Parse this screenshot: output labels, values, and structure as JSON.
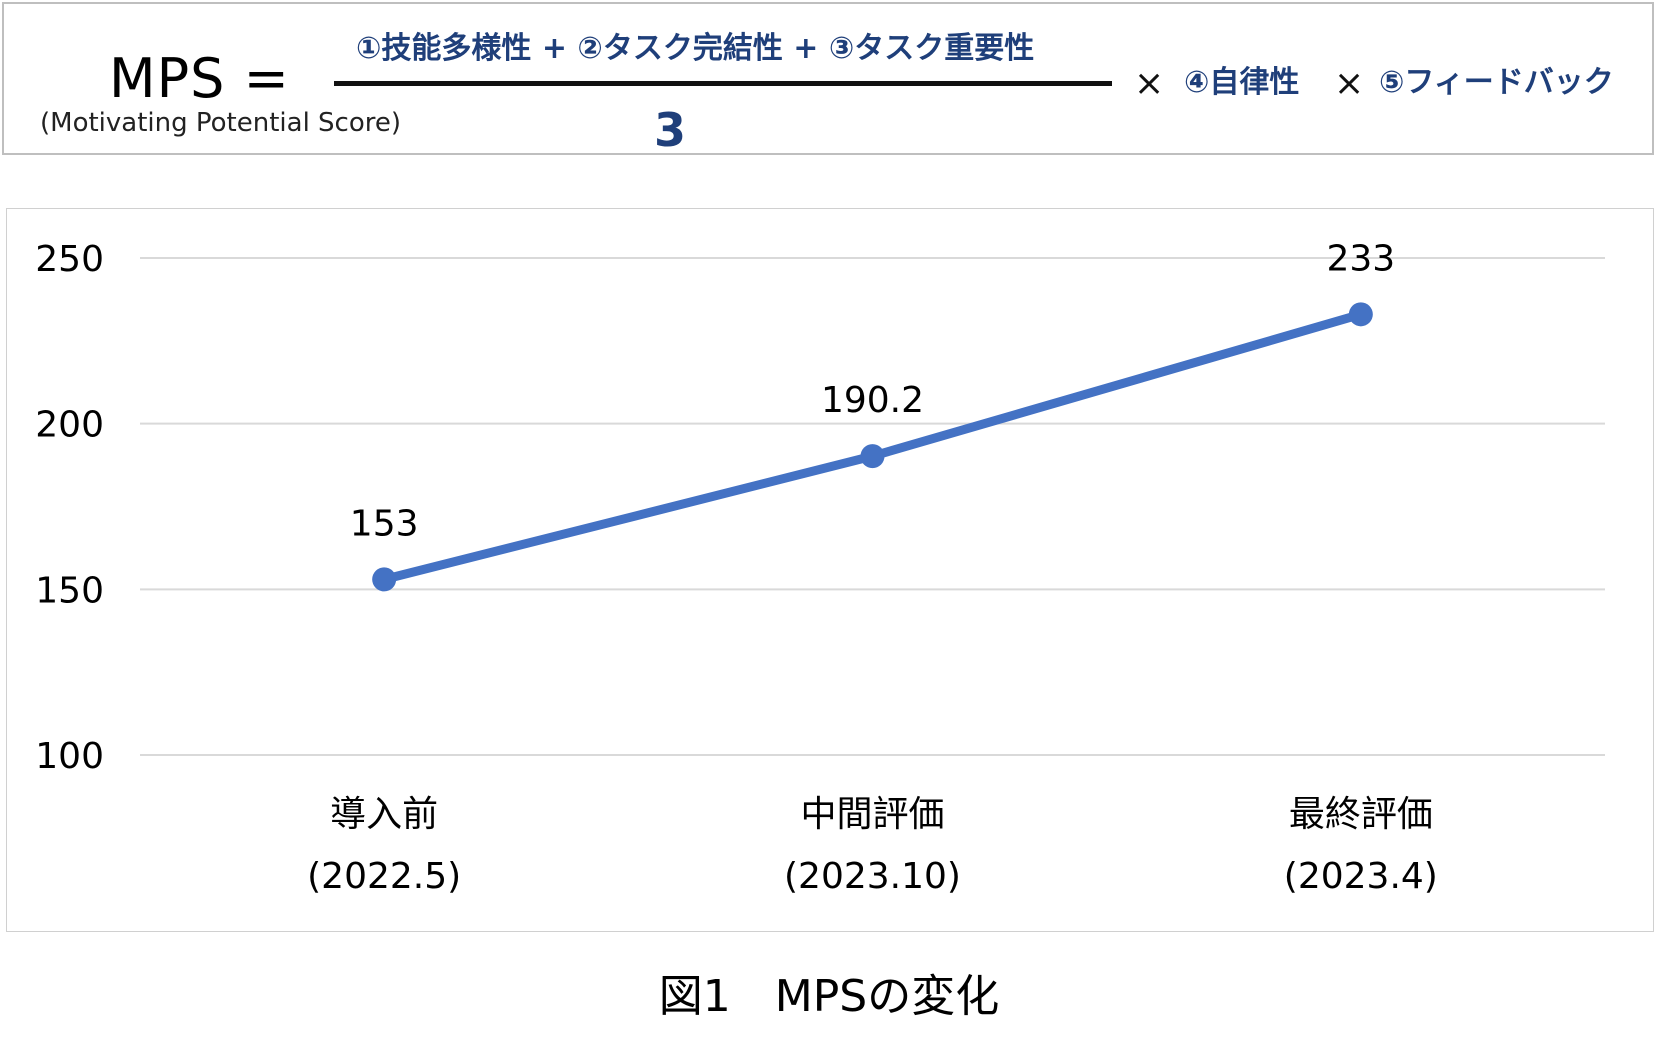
{
  "formula": {
    "lhs": "MPS =",
    "lhs_note": "(Motivating Potential Score)",
    "numerator": "①技能多様性 + ②タスク完結性 + ③タスク重要性",
    "denominator": "3",
    "times_symbol": "×",
    "factor_4": "④自律性",
    "factor_5": "⑤フィードバック",
    "accent_color": "#1f3f7a"
  },
  "chart_data": {
    "type": "line",
    "categories": [
      [
        "導入前",
        "(2022.5)"
      ],
      [
        "中間評価",
        "(2023.10)"
      ],
      [
        "最終評価",
        "(2023.4)"
      ]
    ],
    "series": [
      {
        "values": [
          153,
          190.2,
          233
        ],
        "data_labels": [
          "153",
          "190.2",
          "233"
        ],
        "color": "#4472c4"
      }
    ],
    "ylim": [
      100,
      250
    ],
    "yticks": [
      100,
      150,
      200,
      250
    ],
    "grid": true,
    "legend": "none",
    "title": "",
    "xlabel": "",
    "ylabel": ""
  },
  "caption": "図1　MPSの変化"
}
